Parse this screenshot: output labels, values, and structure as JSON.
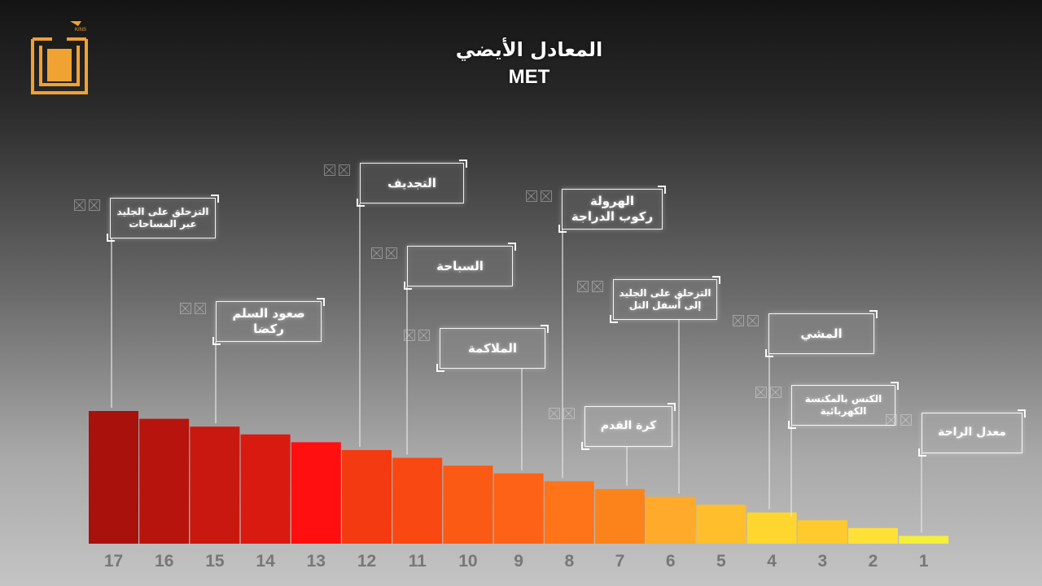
{
  "title": "المعادل الأيضي",
  "subtitle": "MET",
  "logo_text": "KINS",
  "colors": {
    "leader": "#e6e6e6",
    "tick": "#7a7a7a",
    "logo": "#f0a233"
  },
  "chart_data": {
    "type": "bar",
    "title": "المعادل الأيضي",
    "subtitle": "MET",
    "categories": [
      "17",
      "16",
      "15",
      "14",
      "13",
      "12",
      "11",
      "10",
      "9",
      "8",
      "7",
      "6",
      "5",
      "4",
      "3",
      "2",
      "1"
    ],
    "values": [
      17,
      16,
      15,
      14,
      13,
      12,
      11,
      10,
      9,
      8,
      7,
      6,
      5,
      4,
      3,
      2,
      1
    ],
    "colors": [
      "#a8110c",
      "#b7140d",
      "#c9180f",
      "#d81a10",
      "#ff0f0f",
      "#f43a10",
      "#f94812",
      "#fa5a14",
      "#fd6217",
      "#ff7419",
      "#fc831c",
      "#ffaa2a",
      "#ffbe2c",
      "#ffd62e",
      "#ffca2e",
      "#ffe036",
      "#f4ef3a"
    ],
    "ylim": [
      0,
      17
    ],
    "grid": false,
    "legend": "none",
    "annotations": [
      {
        "bar": "17",
        "lines": [
          "التزحلق على الجليد",
          "عبر المساحات"
        ]
      },
      {
        "bar": "15",
        "lines": [
          "صعود السلم",
          "ركضا"
        ]
      },
      {
        "bar": "12",
        "lines": [
          "التجديف"
        ]
      },
      {
        "bar": "11",
        "lines": [
          "السباحة"
        ]
      },
      {
        "bar": "9",
        "lines": [
          "الملاكمة"
        ]
      },
      {
        "bar": "8",
        "lines": [
          "الهرولة",
          "ركوب الدراجة"
        ]
      },
      {
        "bar": "7",
        "lines": [
          "كرة القدم"
        ]
      },
      {
        "bar": "6",
        "lines": [
          "التزحلق على الجليد",
          "إلى أسفل التل"
        ]
      },
      {
        "bar": "4",
        "lines": [
          "المشي"
        ]
      },
      {
        "bar": "3",
        "lines": [
          "الكنس بالمكنسة",
          "الكهربائية"
        ]
      },
      {
        "bar": "1",
        "lines": [
          "معدل الراحة"
        ]
      }
    ]
  }
}
